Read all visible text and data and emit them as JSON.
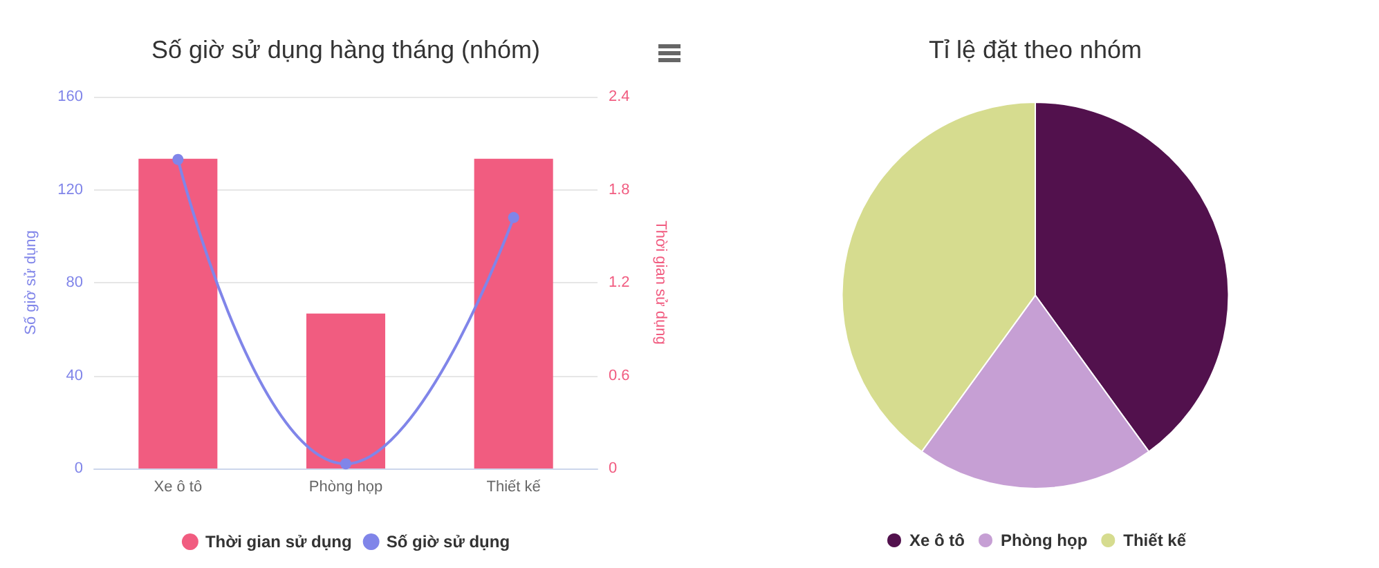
{
  "chart_data": [
    {
      "type": "bar",
      "title": "Số giờ sử dụng hàng tháng (nhóm)",
      "categories": [
        "Xe ô tô",
        "Phòng họp",
        "Thiết kế"
      ],
      "ylabel": "Số giờ sử dụng",
      "y2label": "Thời gian sử dụng",
      "series": [
        {
          "name": "Thời gian sử dụng",
          "type": "bar",
          "axis": "y2",
          "color": "#f15c80",
          "values": [
            2,
            1,
            2
          ]
        },
        {
          "name": "Số giờ sử dụng",
          "type": "line",
          "color": "#8085e9",
          "values": [
            133,
            2,
            108
          ]
        }
      ],
      "ylim": [
        0,
        160
      ],
      "yticks": [
        0,
        40,
        80,
        120,
        160
      ],
      "y2lim": [
        0,
        2.4
      ],
      "y2ticks": [
        0,
        0.6,
        1.2,
        1.8,
        2.4
      ],
      "grid": "y",
      "legend": "bottom",
      "marker": "circle"
    },
    {
      "type": "pie",
      "title": "Tỉ lệ đặt theo nhóm",
      "categories": [
        "Xe ô tô",
        "Phòng họp",
        "Thiết kế"
      ],
      "values": [
        40,
        20,
        40
      ],
      "colors": [
        "#52114d",
        "#c69fd4",
        "#d6dc8f"
      ],
      "legend": "bottom"
    }
  ]
}
